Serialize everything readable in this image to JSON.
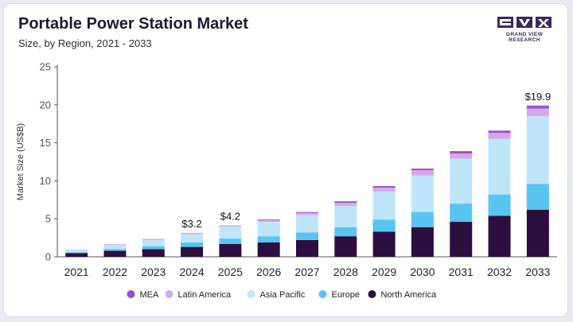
{
  "header": {
    "title": "Portable Power Station Market",
    "subtitle": "Size, by Region, 2021 - 2033",
    "logo_text": "GRAND VIEW RESEARCH"
  },
  "chart_data": {
    "type": "bar",
    "stacked": true,
    "ylabel": "Market Size (US$B)",
    "ylim": [
      0,
      25
    ],
    "yticks": [
      0,
      5,
      10,
      15,
      20,
      25
    ],
    "grid": false,
    "legend_position": "bottom",
    "categories": [
      "2021",
      "2022",
      "2023",
      "2024",
      "2025",
      "2026",
      "2027",
      "2028",
      "2029",
      "2030",
      "2031",
      "2032",
      "2033"
    ],
    "series": [
      {
        "name": "North America",
        "color": "#2c0f3f",
        "values": [
          0.5,
          0.8,
          1.0,
          1.3,
          1.7,
          1.9,
          2.2,
          2.7,
          3.3,
          3.9,
          4.6,
          5.4,
          6.2
        ]
      },
      {
        "name": "Europe",
        "color": "#58c5f0",
        "values": [
          0.1,
          0.2,
          0.4,
          0.6,
          0.7,
          0.8,
          1.0,
          1.2,
          1.6,
          2.0,
          2.4,
          2.8,
          3.4
        ]
      },
      {
        "name": "Asia Pacific",
        "color": "#bfe6f8",
        "values": [
          0.3,
          0.6,
          0.8,
          1.1,
          1.6,
          1.9,
          2.3,
          2.8,
          3.7,
          4.8,
          5.9,
          7.3,
          8.9
        ]
      },
      {
        "name": "Latin America",
        "color": "#d6a8ea",
        "values": [
          0.05,
          0.1,
          0.15,
          0.15,
          0.15,
          0.2,
          0.3,
          0.4,
          0.5,
          0.7,
          0.7,
          0.8,
          1.0
        ]
      },
      {
        "name": "MEA",
        "color": "#9b4fd0",
        "values": [
          0.0,
          0.0,
          0.0,
          0.0,
          0.0,
          0.1,
          0.1,
          0.2,
          0.2,
          0.2,
          0.3,
          0.3,
          0.4
        ]
      }
    ],
    "legend_order": [
      "MEA",
      "Latin America",
      "Asia Pacific",
      "Europe",
      "North America"
    ],
    "annotations": [
      {
        "category": "2024",
        "label": "$3.2"
      },
      {
        "category": "2025",
        "label": "$4.2"
      },
      {
        "category": "2033",
        "label": "$19.9"
      }
    ]
  }
}
